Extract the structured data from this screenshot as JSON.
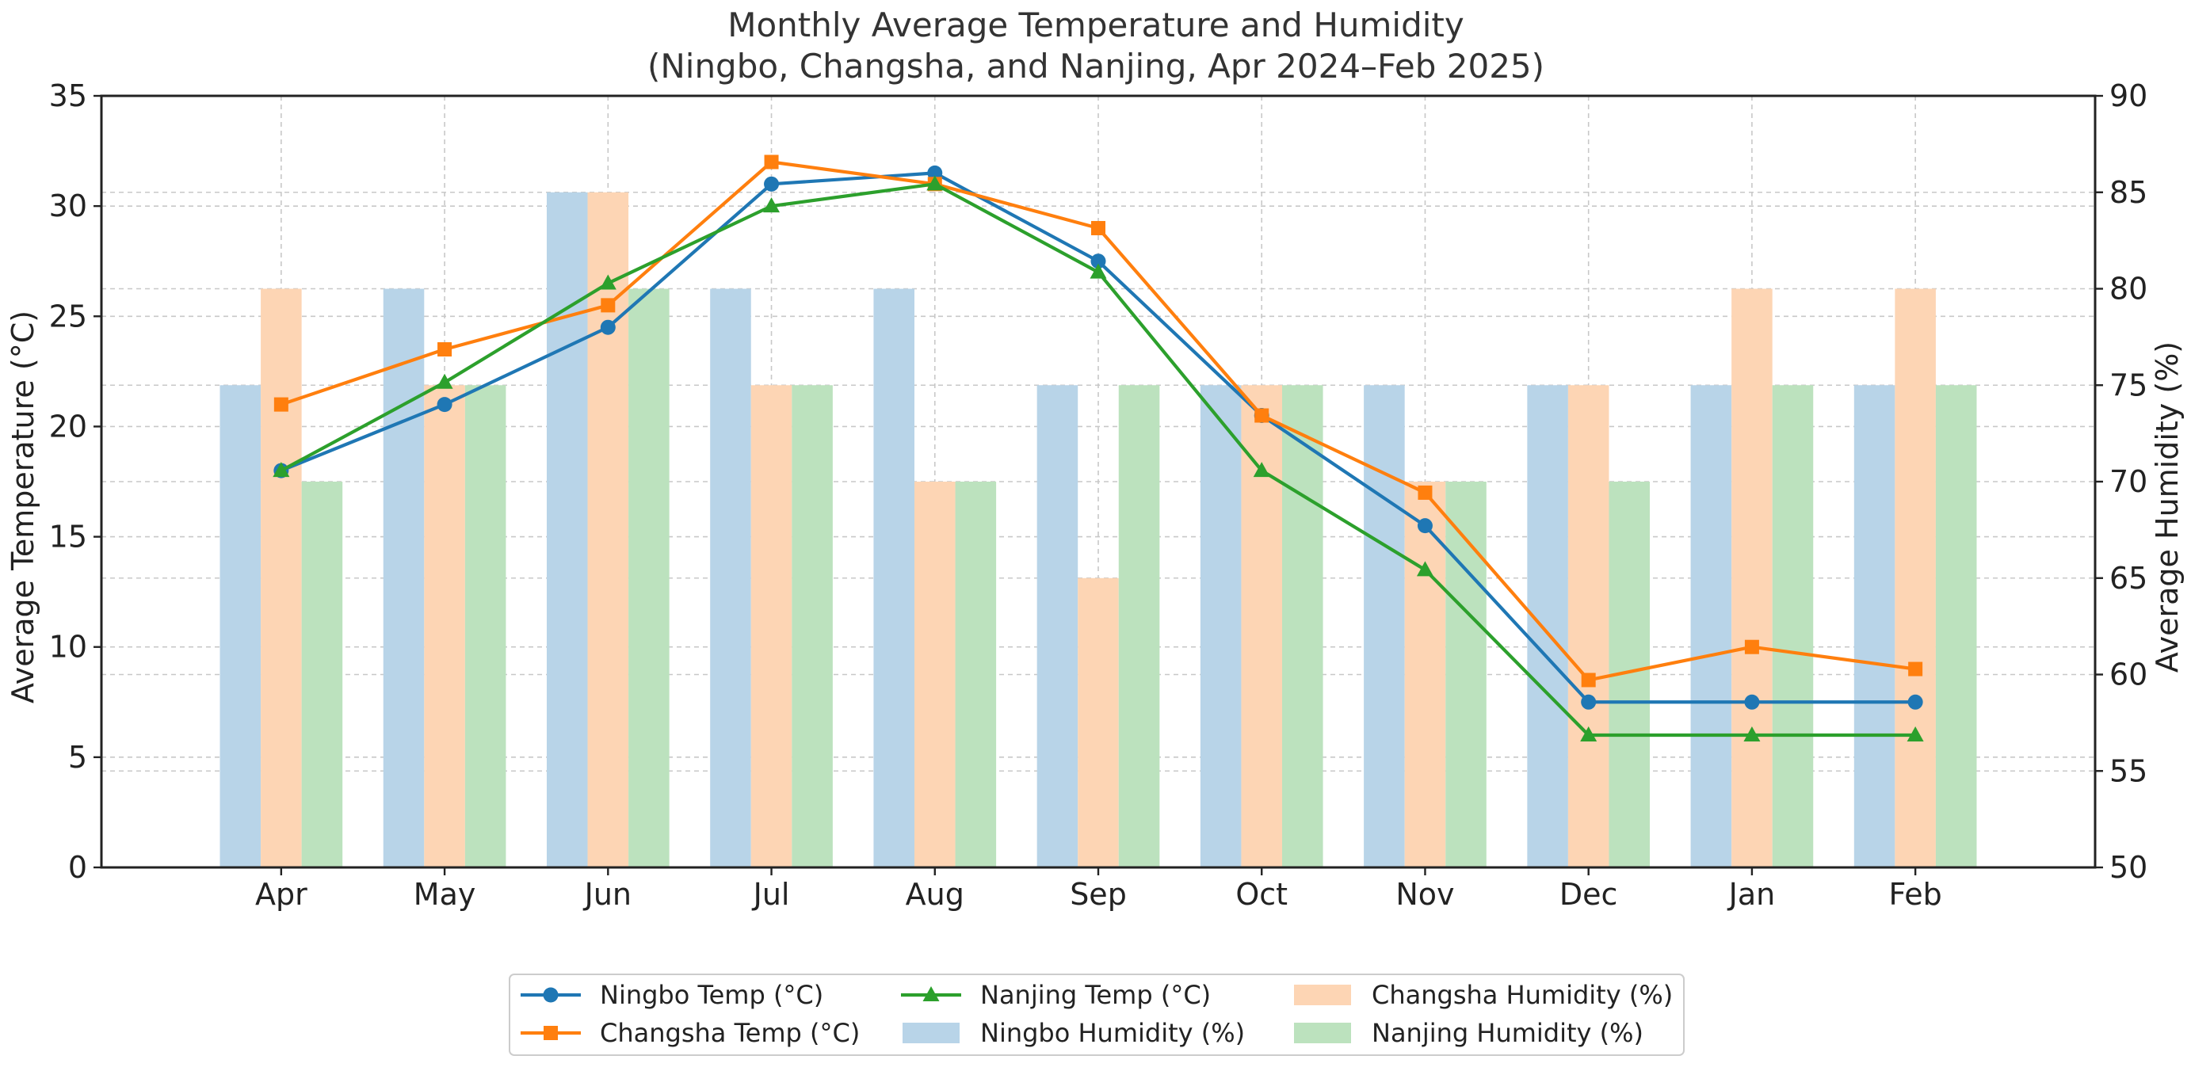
{
  "chart_data": {
    "type": "bar",
    "title_line1": "Monthly Average Temperature and Humidity",
    "title_line2": "(Ningbo, Changsha, and Nanjing, Apr 2024–Feb 2025)",
    "ylabel": "Average Temperature (°C)",
    "y2label": "Average Humidity (%)",
    "ylim": [
      0,
      35
    ],
    "y2lim": [
      50,
      90
    ],
    "yticks": [
      "0",
      "5",
      "10",
      "15",
      "20",
      "25",
      "30",
      "35"
    ],
    "y2ticks": [
      "50",
      "55",
      "60",
      "65",
      "70",
      "75",
      "80",
      "85",
      "90"
    ],
    "grid": true,
    "legend_position": "bottom-center",
    "categories": [
      "Apr",
      "May",
      "Jun",
      "Jul",
      "Aug",
      "Sep",
      "Oct",
      "Nov",
      "Dec",
      "Jan",
      "Feb"
    ],
    "humidity_series": [
      {
        "name": "Ningbo Humidity (%)",
        "color": "#b8d4e8",
        "values": [
          75,
          80,
          85,
          80,
          80,
          75,
          75,
          75,
          75,
          75,
          75
        ]
      },
      {
        "name": "Changsha Humidity (%)",
        "color": "#fdd5b4",
        "values": [
          80,
          75,
          85,
          75,
          70,
          65,
          75,
          70,
          75,
          80,
          80
        ]
      },
      {
        "name": "Nanjing Humidity (%)",
        "color": "#bce2be",
        "values": [
          70,
          75,
          80,
          75,
          70,
          75,
          75,
          70,
          70,
          75,
          75
        ]
      }
    ],
    "temp_series": [
      {
        "name": "Ningbo Temp (°C)",
        "color": "#1f77b4",
        "marker": "circle",
        "values": [
          18,
          21,
          24.5,
          31,
          31.5,
          27.5,
          20.5,
          15.5,
          7.5,
          7.5,
          7.5
        ]
      },
      {
        "name": "Changsha Temp (°C)",
        "color": "#ff7f0e",
        "marker": "square",
        "values": [
          21,
          23.5,
          25.5,
          32,
          31,
          29,
          20.5,
          17,
          8.5,
          10,
          9
        ]
      },
      {
        "name": "Nanjing Temp (°C)",
        "color": "#2ca02c",
        "marker": "triangle",
        "values": [
          18,
          22,
          26.5,
          30,
          31,
          27,
          18,
          13.5,
          6,
          6,
          6
        ]
      }
    ],
    "legend_order": [
      "Ningbo Temp (°C)",
      "Changsha Temp (°C)",
      "Nanjing Temp (°C)",
      "Ningbo Humidity (%)",
      "Changsha Humidity (%)",
      "Nanjing Humidity (%)"
    ]
  }
}
